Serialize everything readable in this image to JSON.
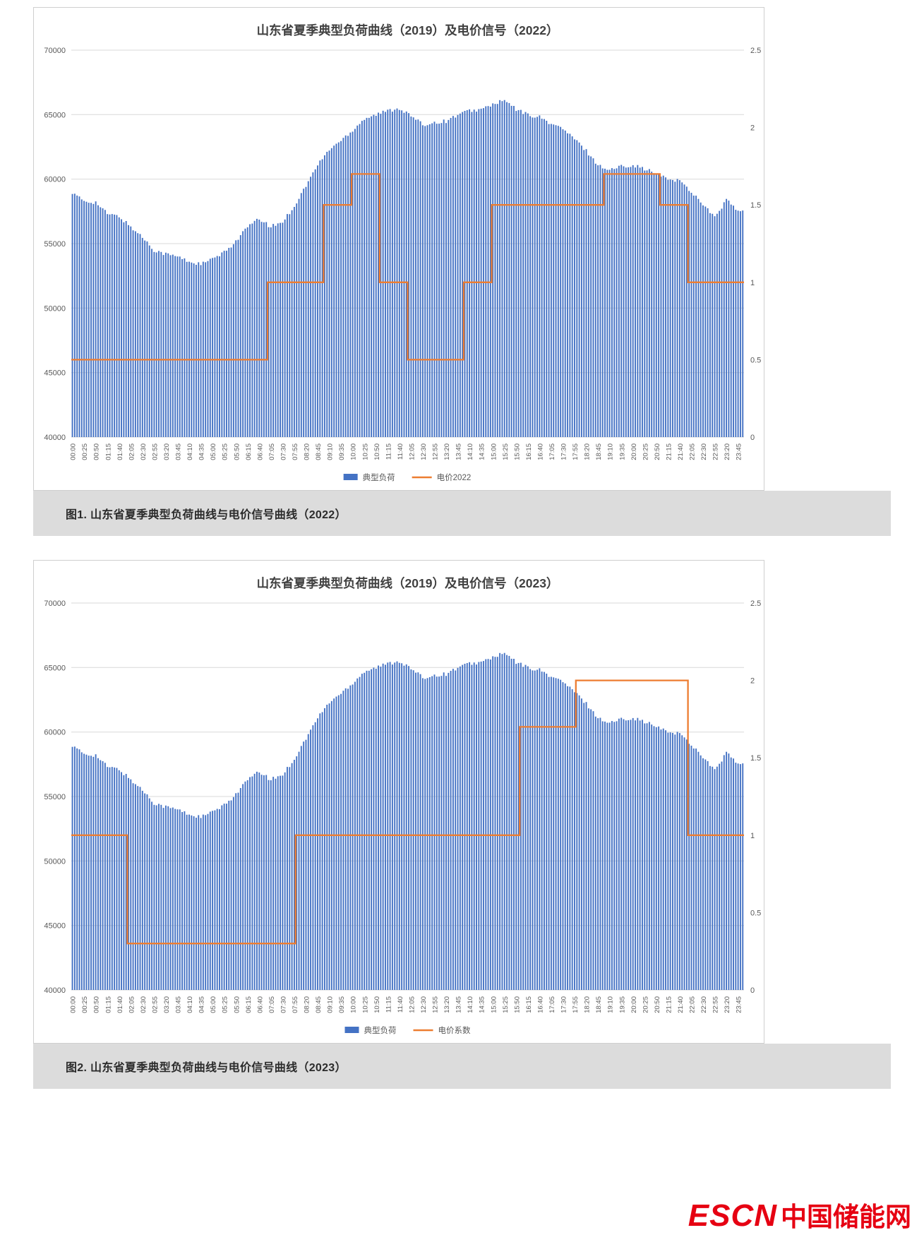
{
  "figures": [
    {
      "caption": "图1. 山东省夏季典型负荷曲线与电价信号曲线（2022）"
    },
    {
      "caption": "图2. 山东省夏季典型负荷曲线与电价信号曲线（2023）"
    }
  ],
  "watermark": {
    "latin": "ESCN",
    "cjk": "中国储能网"
  },
  "colors": {
    "bar": "#4472C4",
    "line": "#ED7D31",
    "grid": "#D9D9D9",
    "axis_text": "#595959",
    "title": "#404040",
    "caption_bg": "#DCDCDC",
    "logo": "#E60012"
  },
  "chart_data": [
    {
      "name": "load-price-chart-2022",
      "type": "bar",
      "combo": "bar + step line (secondary axis)",
      "title": "山东省夏季典型负荷曲线（2019）及电价信号（2022）",
      "grid": true,
      "legend_position": "bottom",
      "legend": [
        {
          "label": "典型负荷",
          "marker": "bar",
          "color": "#4472C4"
        },
        {
          "label": "电价2022",
          "marker": "line",
          "color": "#ED7D31"
        }
      ],
      "axes": {
        "left": {
          "min": 40000,
          "max": 70000,
          "step": 5000,
          "tick_labels": [
            "70000",
            "65000",
            "60000",
            "55000",
            "50000",
            "45000",
            "40000"
          ]
        },
        "right": {
          "min": 0,
          "max": 2.5,
          "step": 0.5,
          "tick_labels": [
            "2.5",
            "2",
            "1.5",
            "1",
            "0.5",
            "0"
          ]
        },
        "x": {
          "unit": "time-of-day",
          "bar_interval_minutes": 5,
          "label_interval_minutes": 25
        }
      },
      "load_series": {
        "name": "典型负荷",
        "times": [
          "00:00",
          "00:25",
          "00:50",
          "01:15",
          "01:40",
          "02:05",
          "02:30",
          "02:55",
          "03:20",
          "03:45",
          "04:10",
          "04:35",
          "05:00",
          "05:25",
          "05:50",
          "06:15",
          "06:40",
          "07:05",
          "07:30",
          "07:55",
          "08:20",
          "08:45",
          "09:10",
          "09:35",
          "10:00",
          "10:25",
          "10:50",
          "11:15",
          "11:40",
          "12:05",
          "12:30",
          "12:55",
          "13:20",
          "13:45",
          "14:10",
          "14:35",
          "15:00",
          "15:25",
          "15:50",
          "16:15",
          "16:40",
          "17:05",
          "17:30",
          "17:55",
          "18:20",
          "18:45",
          "19:10",
          "19:35",
          "20:00",
          "20:25",
          "20:50",
          "21:15",
          "21:40",
          "22:05",
          "22:30",
          "22:55",
          "23:20",
          "23:45"
        ],
        "values": [
          58900,
          58300,
          58200,
          57300,
          57100,
          56300,
          55500,
          54500,
          54200,
          54000,
          53600,
          53400,
          53800,
          54300,
          55200,
          56300,
          56900,
          56300,
          56700,
          57900,
          59500,
          61100,
          62300,
          63000,
          63800,
          64700,
          65000,
          65300,
          65500,
          64900,
          64200,
          64400,
          64500,
          65000,
          65300,
          65400,
          65800,
          66100,
          65400,
          65000,
          64800,
          64300,
          63900,
          63100,
          62200,
          61100,
          60700,
          61000,
          61100,
          60800,
          60400,
          60000,
          59900,
          59000,
          58100,
          57000,
          58400,
          57500
        ]
      },
      "price_series": {
        "name": "电价2022",
        "segments": [
          {
            "from": "00:00",
            "to": "07:00",
            "value": 0.5
          },
          {
            "from": "07:00",
            "to": "09:00",
            "value": 1
          },
          {
            "from": "09:00",
            "to": "10:00",
            "value": 1.5
          },
          {
            "from": "10:00",
            "to": "11:00",
            "value": 1.7
          },
          {
            "from": "11:00",
            "to": "12:00",
            "value": 1
          },
          {
            "from": "12:00",
            "to": "14:00",
            "value": 0.5
          },
          {
            "from": "14:00",
            "to": "15:00",
            "value": 1
          },
          {
            "from": "15:00",
            "to": "19:00",
            "value": 1.5
          },
          {
            "from": "19:00",
            "to": "21:00",
            "value": 1.7
          },
          {
            "from": "21:00",
            "to": "22:00",
            "value": 1.5
          },
          {
            "from": "22:00",
            "to": "24:00",
            "value": 1
          }
        ]
      }
    },
    {
      "name": "load-price-chart-2023",
      "type": "bar",
      "combo": "bar + step line (secondary axis)",
      "title": "山东省夏季典型负荷曲线（2019）及电价信号（2023）",
      "grid": true,
      "legend_position": "bottom",
      "legend": [
        {
          "label": "典型负荷",
          "marker": "bar",
          "color": "#4472C4"
        },
        {
          "label": "电价系数",
          "marker": "line",
          "color": "#ED7D31"
        }
      ],
      "axes": {
        "left": {
          "min": 40000,
          "max": 70000,
          "step": 5000,
          "tick_labels": [
            "70000",
            "65000",
            "60000",
            "55000",
            "50000",
            "45000",
            "40000"
          ]
        },
        "right": {
          "min": 0,
          "max": 2.5,
          "step": 0.5,
          "tick_labels": [
            "2.5",
            "2",
            "1.5",
            "1",
            "0.5",
            "0"
          ]
        },
        "x": {
          "unit": "time-of-day",
          "bar_interval_minutes": 5,
          "label_interval_minutes": 25
        }
      },
      "load_series": {
        "name": "典型负荷",
        "times": [
          "00:00",
          "00:25",
          "00:50",
          "01:15",
          "01:40",
          "02:05",
          "02:30",
          "02:55",
          "03:20",
          "03:45",
          "04:10",
          "04:35",
          "05:00",
          "05:25",
          "05:50",
          "06:15",
          "06:40",
          "07:05",
          "07:30",
          "07:55",
          "08:20",
          "08:45",
          "09:10",
          "09:35",
          "10:00",
          "10:25",
          "10:50",
          "11:15",
          "11:40",
          "12:05",
          "12:30",
          "12:55",
          "13:20",
          "13:45",
          "14:10",
          "14:35",
          "15:00",
          "15:25",
          "15:50",
          "16:15",
          "16:40",
          "17:05",
          "17:30",
          "17:55",
          "18:20",
          "18:45",
          "19:10",
          "19:35",
          "20:00",
          "20:25",
          "20:50",
          "21:15",
          "21:40",
          "22:05",
          "22:30",
          "22:55",
          "23:20",
          "23:45"
        ],
        "values": [
          58900,
          58300,
          58200,
          57300,
          57100,
          56300,
          55500,
          54500,
          54200,
          54000,
          53600,
          53400,
          53800,
          54300,
          55200,
          56300,
          56900,
          56300,
          56700,
          57900,
          59500,
          61100,
          62300,
          63000,
          63800,
          64700,
          65000,
          65300,
          65500,
          64900,
          64200,
          64400,
          64500,
          65000,
          65300,
          65400,
          65800,
          66100,
          65400,
          65000,
          64800,
          64300,
          63900,
          63100,
          62200,
          61100,
          60700,
          61000,
          61100,
          60800,
          60400,
          60000,
          59900,
          59000,
          58100,
          57000,
          58400,
          57500
        ]
      },
      "price_series": {
        "name": "电价系数",
        "segments": [
          {
            "from": "00:00",
            "to": "02:00",
            "value": 1
          },
          {
            "from": "02:00",
            "to": "08:00",
            "value": 0.3
          },
          {
            "from": "08:00",
            "to": "16:00",
            "value": 1
          },
          {
            "from": "16:00",
            "to": "18:00",
            "value": 1.7
          },
          {
            "from": "18:00",
            "to": "22:00",
            "value": 2
          },
          {
            "from": "22:00",
            "to": "24:00",
            "value": 1
          }
        ]
      }
    }
  ]
}
